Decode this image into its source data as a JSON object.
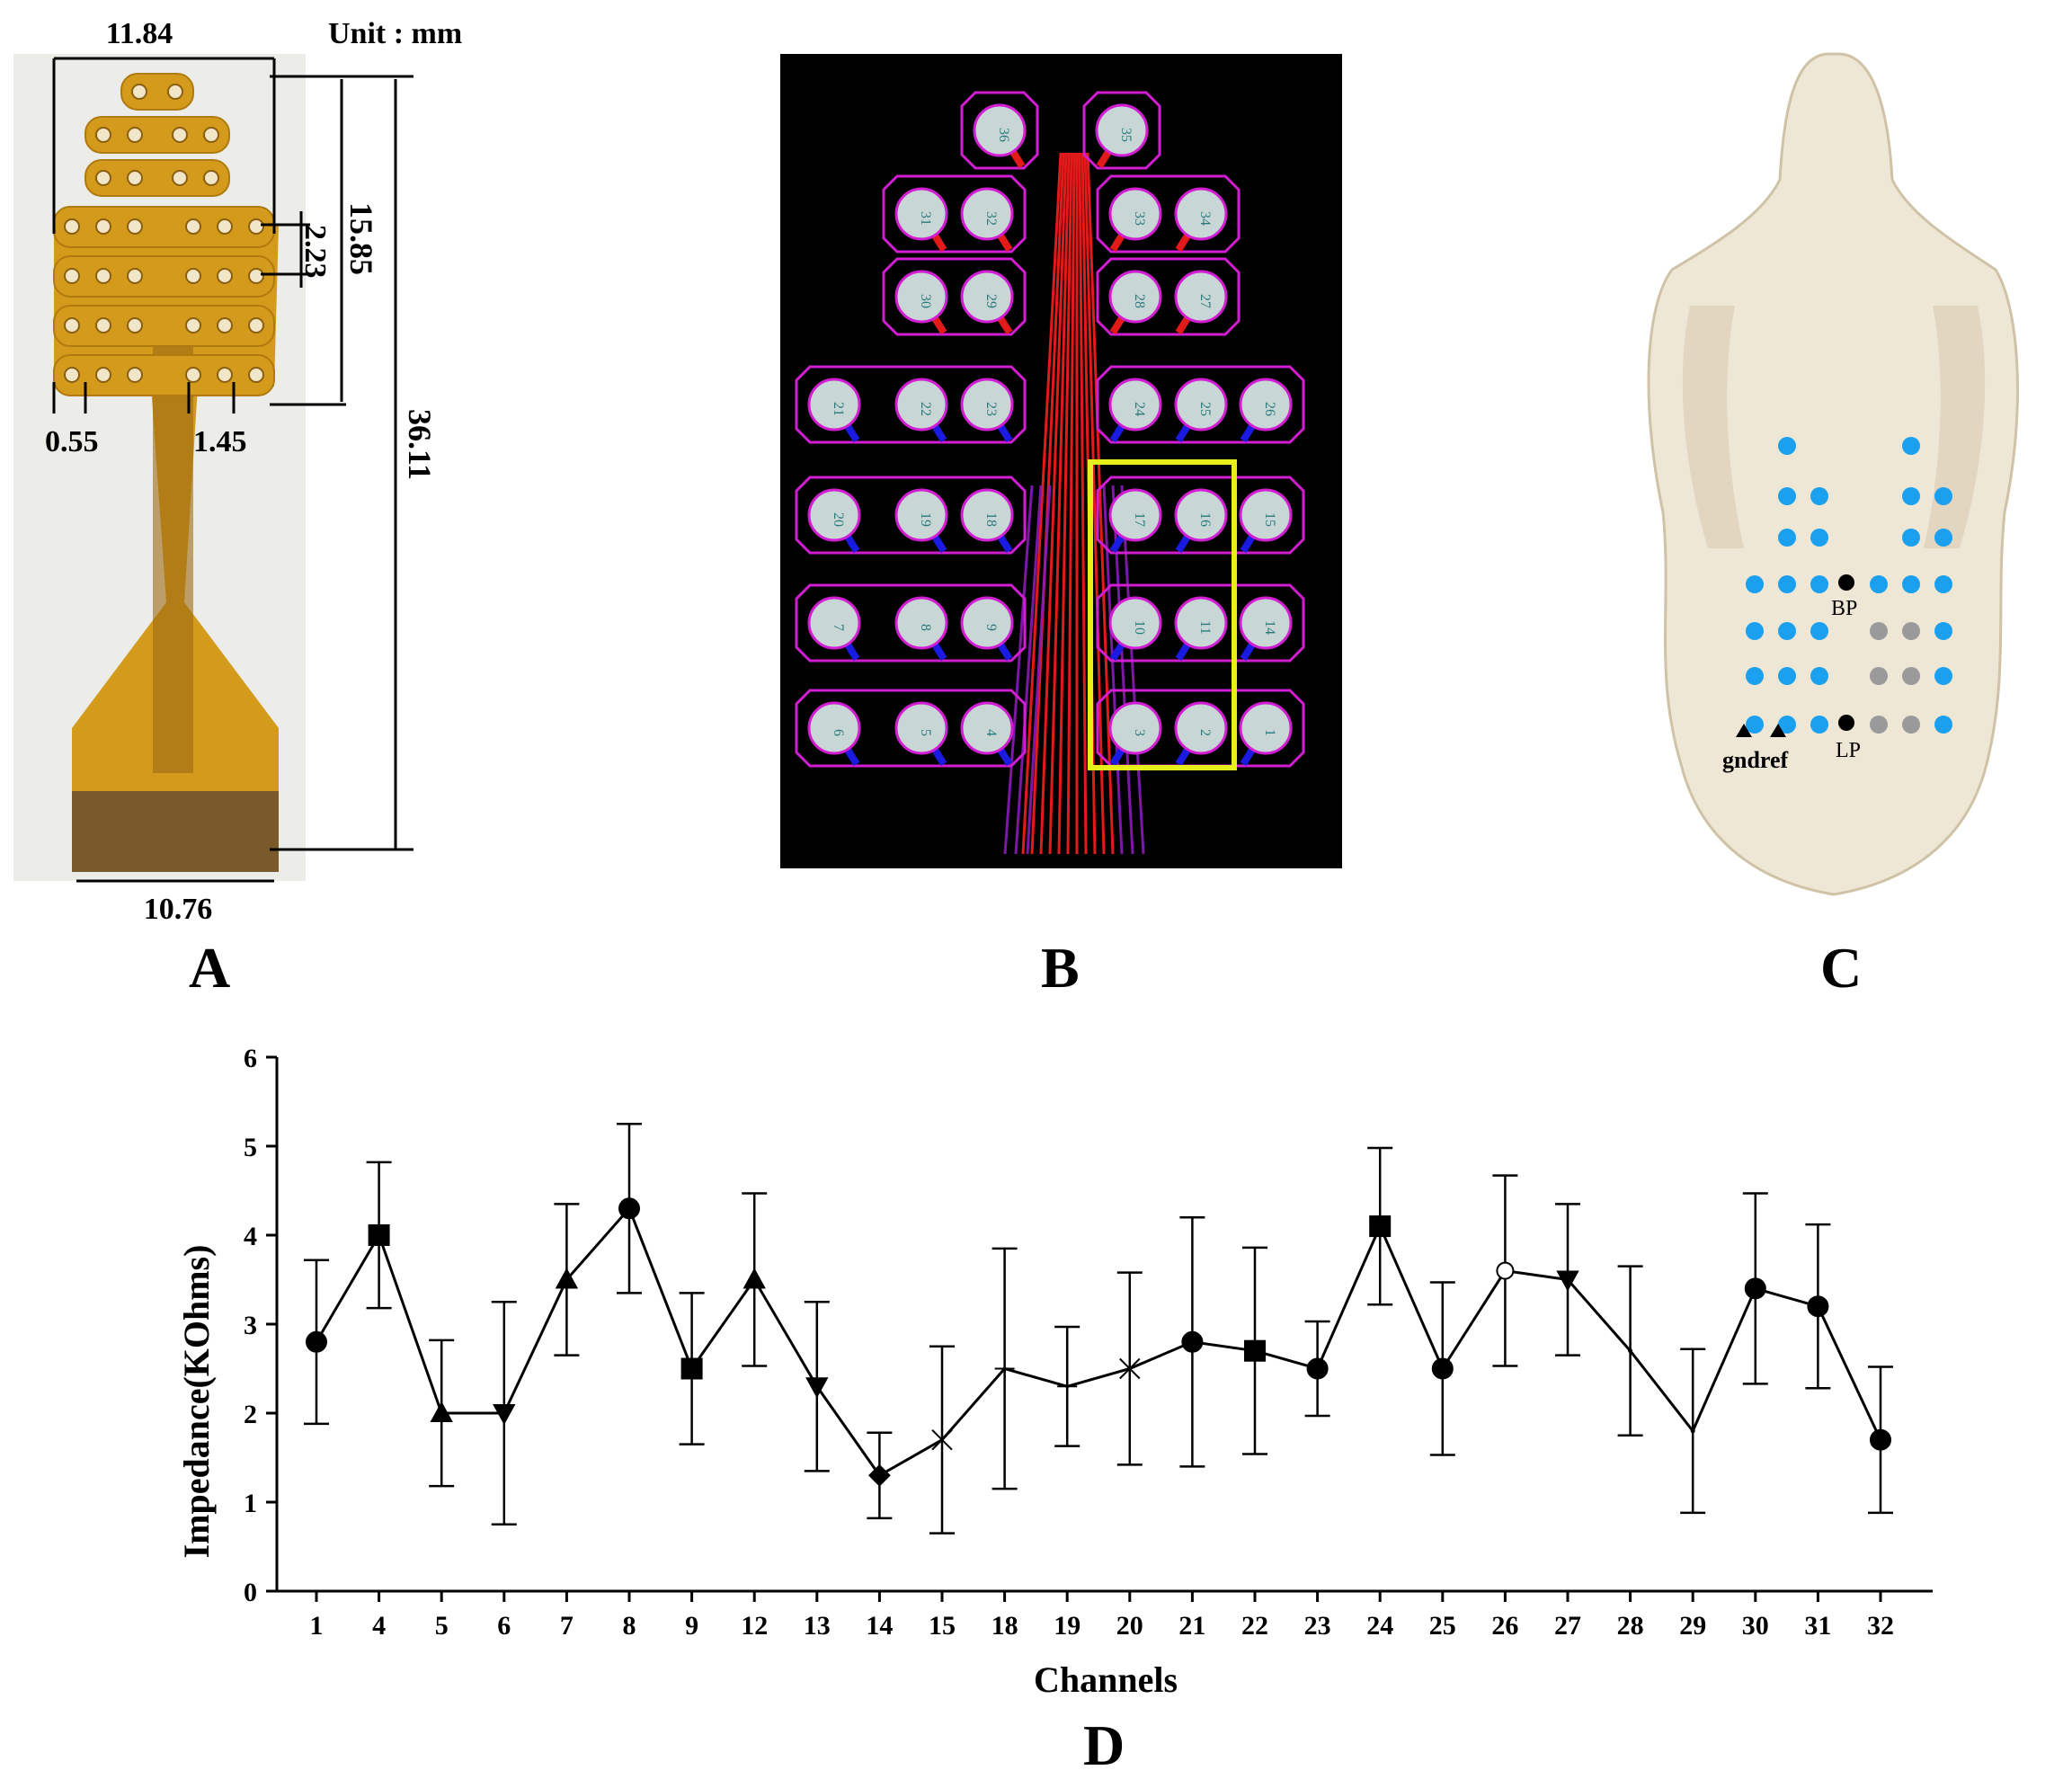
{
  "panels": {
    "A": {
      "letter": "A",
      "unit_label": "Unit : mm",
      "dims": {
        "top_width": "11.84",
        "pitch_vertical": "2.23",
        "array_height": "15.85",
        "total_length": "36.11",
        "pad_gap": "0.55",
        "pad_spacing": "1.45",
        "connector_width": "10.76"
      }
    },
    "B": {
      "letter": "B",
      "pad_rows": [
        [
          "36",
          "35"
        ],
        [
          "31",
          "32",
          "33",
          "34"
        ],
        [
          "30",
          "29",
          "28",
          "27"
        ],
        [
          "21",
          "22",
          "23",
          "24",
          "25",
          "26"
        ],
        [
          "20",
          "19",
          "18",
          "17",
          "16",
          "15"
        ],
        [
          "7",
          "8",
          "9",
          "10",
          "11",
          "14"
        ],
        [
          "6",
          "5",
          "4",
          "3",
          "2",
          "1"
        ]
      ]
    },
    "C": {
      "letter": "C",
      "labels": {
        "bp": "BP",
        "lp": "LP",
        "gnd_ref": "gndref"
      }
    },
    "D": {
      "letter": "D"
    }
  },
  "colors": {
    "pcb_bg": "#000000",
    "pcb_outline": "#d21ed2",
    "trace_red": "#e21a1a",
    "trace_blue": "#1a1ae0",
    "highlight": "#e8ee1a",
    "electrode_blue": "#1aa0ee",
    "electrode_gray": "#9a9a9a",
    "flex_orange": "#d39a1c"
  },
  "chart_data": {
    "type": "line",
    "title": "",
    "xlabel": "Channels",
    "ylabel": "Impedance(KOhms)",
    "ylim": [
      0,
      6
    ],
    "yticks": [
      "0",
      "1",
      "2",
      "3",
      "4",
      "5",
      "6"
    ],
    "categories": [
      "1",
      "4",
      "5",
      "6",
      "7",
      "8",
      "9",
      "12",
      "13",
      "14",
      "15",
      "18",
      "19",
      "20",
      "21",
      "22",
      "23",
      "24",
      "25",
      "26",
      "27",
      "28",
      "29",
      "30",
      "31",
      "32"
    ],
    "series": [
      {
        "name": "Impedance",
        "values": [
          2.8,
          4.0,
          2.0,
          2.0,
          3.5,
          4.3,
          2.5,
          3.5,
          2.3,
          1.3,
          1.7,
          2.5,
          2.3,
          2.5,
          2.8,
          2.7,
          2.5,
          4.1,
          2.5,
          3.6,
          3.5,
          2.7,
          1.8,
          3.4,
          3.2,
          1.7
        ],
        "error_upper": [
          3.72,
          4.82,
          2.82,
          3.25,
          4.35,
          5.25,
          3.35,
          4.47,
          3.25,
          1.78,
          2.75,
          3.85,
          2.97,
          3.58,
          4.2,
          3.86,
          3.03,
          4.98,
          3.47,
          4.67,
          4.35,
          3.65,
          2.72,
          4.47,
          4.12,
          2.52
        ],
        "error_lower": [
          1.88,
          3.18,
          1.18,
          0.75,
          2.65,
          3.35,
          1.65,
          2.53,
          1.35,
          0.82,
          0.65,
          1.15,
          1.63,
          1.42,
          1.4,
          1.54,
          1.97,
          3.22,
          1.53,
          2.53,
          2.65,
          1.75,
          0.88,
          2.33,
          2.28,
          0.88
        ],
        "markers": [
          "circle",
          "square",
          "triangle-up",
          "triangle-down",
          "triangle-up",
          "circle",
          "square",
          "triangle-up",
          "triangle-down",
          "diamond",
          "star",
          "plus",
          "plus",
          "cross",
          "circle",
          "square",
          "circle",
          "square",
          "circle",
          "circle-open",
          "triangle-down",
          "none",
          "none",
          "circle",
          "circle",
          "circle"
        ]
      }
    ]
  }
}
